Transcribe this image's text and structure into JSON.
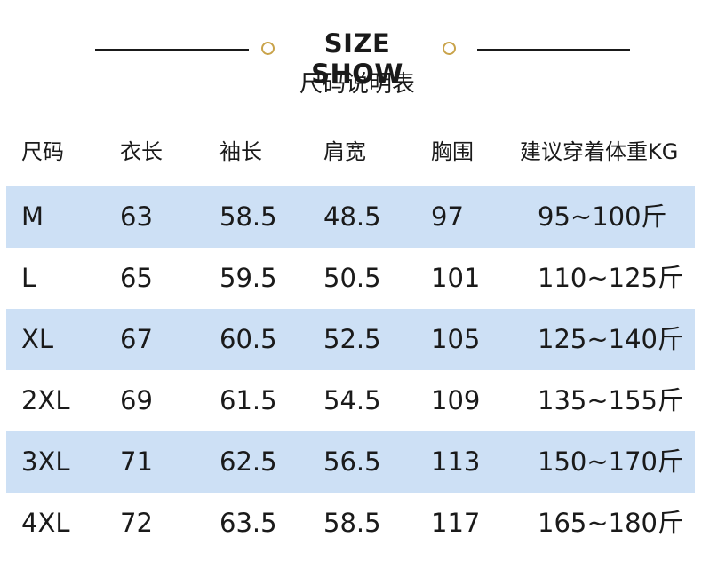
{
  "header": {
    "title": "SIZE SHOW",
    "subtitle": "尺码说明表"
  },
  "colors": {
    "row_shade": "#cde0f5",
    "accent_circle": "#c9a34a",
    "text": "#1a1a1a"
  },
  "table": {
    "columns": [
      "尺码",
      "衣长",
      "袖长",
      "肩宽",
      "胸围",
      "建议穿着体重KG"
    ],
    "rows": [
      [
        "M",
        "63",
        "58.5",
        "48.5",
        "97",
        "95~100斤"
      ],
      [
        "L",
        "65",
        "59.5",
        "50.5",
        "101",
        "110~125斤"
      ],
      [
        "XL",
        "67",
        "60.5",
        "52.5",
        "105",
        "125~140斤"
      ],
      [
        "2XL",
        "69",
        "61.5",
        "54.5",
        "109",
        "135~155斤"
      ],
      [
        "3XL",
        "71",
        "62.5",
        "56.5",
        "113",
        "150~170斤"
      ],
      [
        "4XL",
        "72",
        "63.5",
        "58.5",
        "117",
        "165~180斤"
      ]
    ]
  }
}
